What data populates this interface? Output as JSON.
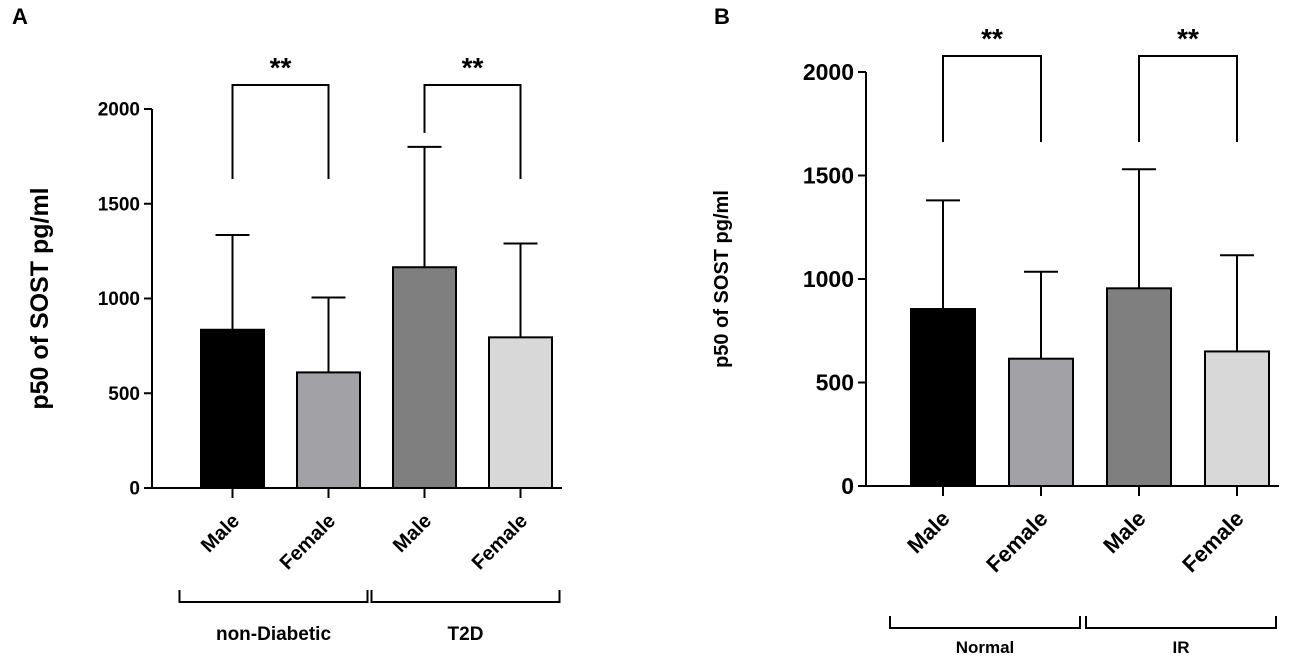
{
  "chart_data": [
    {
      "panel_label": "A",
      "type": "bar",
      "ylabel": "p50 of SOST pg/ml",
      "ylim": [
        0,
        2000
      ],
      "yticks": [
        "0",
        "500",
        "1000",
        "1500",
        "2000"
      ],
      "categories": [
        "Male",
        "Female",
        "Male",
        "Female"
      ],
      "groups": [
        {
          "label": "non-Diabetic",
          "members": [
            0,
            1
          ]
        },
        {
          "label": "T2D",
          "members": [
            2,
            3
          ]
        }
      ],
      "values": [
        835,
        610,
        1165,
        795
      ],
      "errors": [
        500,
        395,
        635,
        495
      ],
      "colors": [
        "#000000",
        "#a2a2a6",
        "#7f7f7f",
        "#d8d8d8"
      ],
      "significance": [
        {
          "between": [
            0,
            1
          ],
          "label": "**"
        },
        {
          "between": [
            2,
            3
          ],
          "label": "**"
        }
      ]
    },
    {
      "panel_label": "B",
      "type": "bar",
      "ylabel": "p50 of SOST pg/ml",
      "ylim": [
        0,
        2000
      ],
      "yticks": [
        "0",
        "500",
        "1000",
        "1500",
        "2000"
      ],
      "categories": [
        "Male",
        "Female",
        "Male",
        "Female"
      ],
      "groups": [
        {
          "label": "Normal",
          "members": [
            0,
            1
          ]
        },
        {
          "label": "IR",
          "members": [
            2,
            3
          ]
        }
      ],
      "values": [
        855,
        615,
        955,
        650
      ],
      "errors": [
        525,
        420,
        575,
        465
      ],
      "colors": [
        "#000000",
        "#a2a2a6",
        "#7f7f7f",
        "#d8d8d8"
      ],
      "significance": [
        {
          "between": [
            0,
            1
          ],
          "label": "**"
        },
        {
          "between": [
            2,
            3
          ],
          "label": "**"
        }
      ]
    }
  ]
}
